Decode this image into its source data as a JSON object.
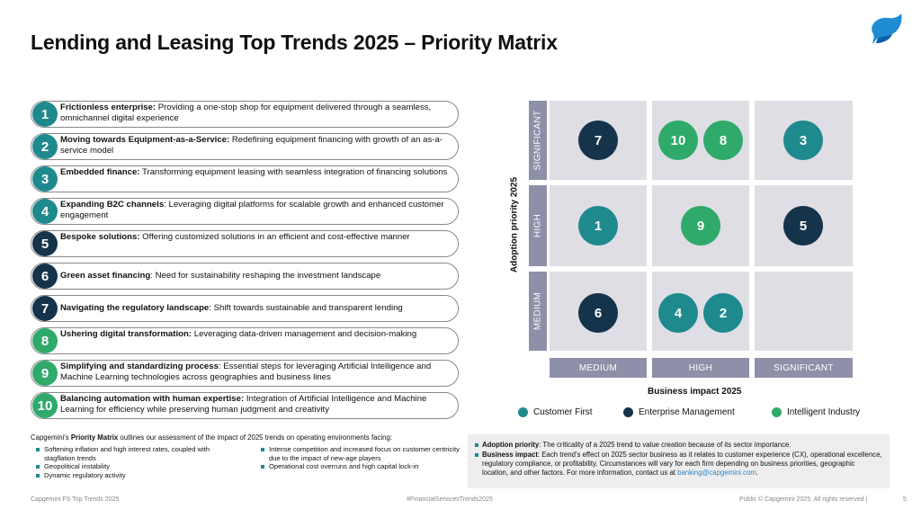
{
  "title": "Lending and Leasing Top Trends 2025 – Priority Matrix",
  "logo": "capgemini-spade-logo",
  "colors": {
    "teal": "#1f8a8d",
    "navy": "#15334a",
    "green": "#2faa6b",
    "axis": "#8d90a8",
    "cell": "#dedee4"
  },
  "trends": [
    {
      "num": "1",
      "bold": "Frictionless enterprise:",
      "rest": " Providing a one-stop shop for equipment delivered through a seamless, omnichannel digital experience",
      "color": "teal"
    },
    {
      "num": "2",
      "bold": "Moving towards Equipment-as-a-Service:",
      "rest": " Redefining equipment financing with growth of an as-a-service model",
      "color": "teal"
    },
    {
      "num": "3",
      "bold": "Embedded finance:",
      "rest": " Transforming equipment leasing with seamless integration of financing solutions",
      "color": "teal"
    },
    {
      "num": "4",
      "bold": "Expanding B2C channels",
      "rest": ": Leveraging digital platforms for scalable growth and enhanced customer engagement",
      "color": "teal"
    },
    {
      "num": "5",
      "bold": "Bespoke solutions:",
      "rest": " Offering customized solutions in an efficient and cost-effective manner",
      "color": "navy"
    },
    {
      "num": "6",
      "bold": "Green asset financing",
      "rest": ": Need for sustainability reshaping the investment landscape",
      "color": "navy"
    },
    {
      "num": "7",
      "bold": "Navigating the regulatory landscape",
      "rest": ": Shift towards sustainable and transparent lending",
      "color": "navy"
    },
    {
      "num": "8",
      "bold": "Ushering digital transformation:",
      "rest": " Leveraging data-driven management and decision-making",
      "color": "green"
    },
    {
      "num": "9",
      "bold": "Simplifying and standardizing process",
      "rest": ": Essential steps for leveraging Artificial Intelligence and Machine Learning technologies across geographies and business lines",
      "color": "green"
    },
    {
      "num": "10",
      "bold": "Balancing automation with human expertise:",
      "rest": " Integration of Artificial Intelligence and Machine Learning for efficiency while preserving human judgment and creativity",
      "color": "green"
    }
  ],
  "matrix": {
    "y_axis_title": "Adoption priority 2025",
    "x_axis_title": "Business impact 2025",
    "y_levels": [
      "SIGNIFICANT",
      "HIGH",
      "MEDIUM"
    ],
    "x_levels": [
      "MEDIUM",
      "HIGH",
      "SIGNIFICANT"
    ],
    "bubbles": [
      {
        "label": "7",
        "adoption": "SIGNIFICANT",
        "impact": "MEDIUM",
        "category": "navy"
      },
      {
        "label": "10",
        "adoption": "SIGNIFICANT",
        "impact": "HIGH",
        "category": "green"
      },
      {
        "label": "8",
        "adoption": "SIGNIFICANT",
        "impact": "HIGH",
        "category": "green"
      },
      {
        "label": "3",
        "adoption": "SIGNIFICANT",
        "impact": "SIGNIFICANT",
        "category": "teal"
      },
      {
        "label": "1",
        "adoption": "HIGH",
        "impact": "MEDIUM",
        "category": "teal"
      },
      {
        "label": "9",
        "adoption": "HIGH",
        "impact": "HIGH",
        "category": "green"
      },
      {
        "label": "5",
        "adoption": "HIGH",
        "impact": "SIGNIFICANT",
        "category": "navy"
      },
      {
        "label": "6",
        "adoption": "MEDIUM",
        "impact": "MEDIUM",
        "category": "navy"
      },
      {
        "label": "4",
        "adoption": "MEDIUM",
        "impact": "HIGH",
        "category": "teal"
      },
      {
        "label": "2",
        "adoption": "MEDIUM",
        "impact": "HIGH",
        "category": "teal"
      }
    ]
  },
  "legend": [
    {
      "label": "Customer First",
      "color": "#1f8a8d"
    },
    {
      "label": "Enterprise Management",
      "color": "#15334a"
    },
    {
      "label": "Intelligent Industry",
      "color": "#2faa6b"
    }
  ],
  "intro": {
    "pre": "Capgemini's ",
    "bold": "Priority Matrix",
    "post": " outlines our assessment of the impact of 2025 trends on operating environments facing:"
  },
  "bullets_left": [
    "Softening inflation and high interest rates, coupled with stagflation trends",
    "Geopolitical instability",
    "Dynamic regulatory activity"
  ],
  "bullets_right": [
    "Intense competition and increased focus on customer centricity due to the impact of new-age players",
    "Operational cost overruns and high capital lock-in"
  ],
  "info": {
    "adoption_bold": "Adoption priority",
    "adoption_text": ": The criticality of a 2025 trend to value creation because of its sector importance.",
    "impact_bold": "Business impact",
    "impact_text": ": Each trend's effect on 2025 sector business as it relates to customer experience (CX), operational excellence, regulatory compliance, or profitability. Circumstances will vary for each firm depending on business priorities, geographic location, and other factors. For more information, contact us at ",
    "email": "banking@capgemini.com",
    "end": "."
  },
  "footer": {
    "left": "Capgemini FS Top Trends 2025",
    "center": "#FinancialServicesTrends2025",
    "right": "Public © Capgemini 2025. All rights reserved  |",
    "page": "5"
  }
}
